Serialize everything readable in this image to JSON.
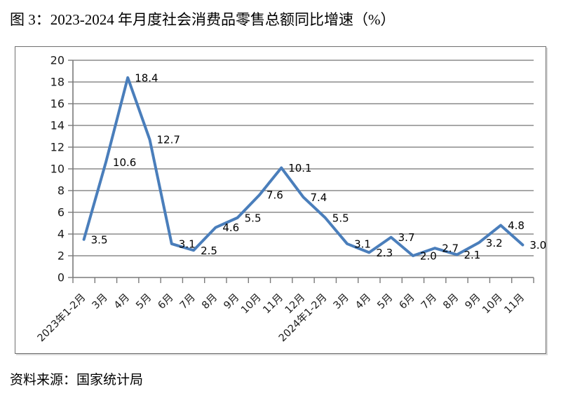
{
  "page": {
    "title": "图 3：2023-2024 年月度社会消费品零售总额同比增速（%）",
    "source": "资料来源：国家统计局"
  },
  "chart_data": {
    "type": "line",
    "title": "2023-2024 年月度社会消费品零售总额同比增速（%）",
    "categories": [
      "2023年1-2月",
      "3月",
      "4月",
      "5月",
      "6月",
      "7月",
      "8月",
      "9月",
      "10月",
      "11月",
      "12月",
      "2024年1-2月",
      "3月",
      "4月",
      "5月",
      "6月",
      "7月",
      "8月",
      "9月",
      "10月",
      "11月"
    ],
    "values": [
      3.5,
      10.6,
      18.4,
      12.7,
      3.1,
      2.5,
      4.6,
      5.5,
      7.6,
      10.1,
      7.4,
      5.5,
      3.1,
      2.3,
      3.7,
      2.0,
      2.7,
      2.1,
      3.2,
      4.8,
      3.0
    ],
    "data_labels": [
      "3.5",
      "10.6",
      "18.4",
      "12.7",
      "3.1",
      "2.5",
      "4.6",
      "5.5",
      "7.6",
      "10.1",
      "7.4",
      "5.5",
      "3.1",
      "2.3",
      "3.7",
      "2.0",
      "2.7",
      "2.1",
      "3.2",
      "4.8",
      "3.0"
    ],
    "xlabel": "",
    "ylabel": "",
    "ylim": [
      0,
      20
    ],
    "ytick_step": 2,
    "grid": true,
    "legend": "none",
    "series_color": "#4A7EBB",
    "gridline_color": "#8c8c8c",
    "label_color": "#000000"
  }
}
